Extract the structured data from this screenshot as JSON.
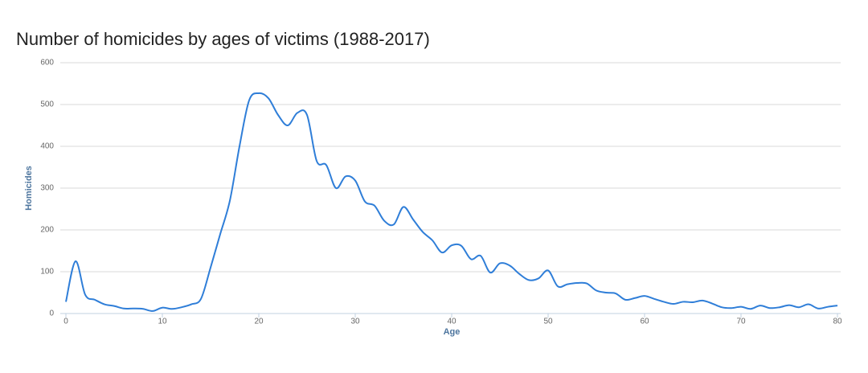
{
  "chart_data": {
    "type": "line",
    "title": "Number of homicides by ages of victims (1988-2017)",
    "x_label": "Age",
    "y_label": "Homicides",
    "x": [
      0,
      1,
      2,
      3,
      4,
      5,
      6,
      7,
      8,
      9,
      10,
      11,
      12,
      13,
      14,
      15,
      16,
      17,
      18,
      19,
      20,
      21,
      22,
      23,
      24,
      25,
      26,
      27,
      28,
      29,
      30,
      31,
      32,
      33,
      34,
      35,
      36,
      37,
      38,
      39,
      40,
      41,
      42,
      43,
      44,
      45,
      46,
      47,
      48,
      49,
      50,
      51,
      52,
      53,
      54,
      55,
      56,
      57,
      58,
      59,
      60,
      61,
      62,
      63,
      64,
      65,
      66,
      67,
      68,
      69,
      70,
      71,
      72,
      73,
      74,
      75,
      76,
      77,
      78,
      79,
      80
    ],
    "series": [
      {
        "name": "Homicides",
        "color": "#2f7ed8",
        "values": [
          28,
          125,
          45,
          33,
          22,
          18,
          12,
          12,
          11,
          6,
          14,
          11,
          15,
          22,
          35,
          110,
          190,
          270,
          400,
          510,
          527,
          515,
          475,
          450,
          480,
          475,
          365,
          355,
          300,
          328,
          318,
          268,
          258,
          222,
          213,
          255,
          225,
          195,
          175,
          146,
          163,
          162,
          130,
          138,
          98,
          120,
          115,
          95,
          80,
          84,
          103,
          65,
          70,
          73,
          72,
          55,
          50,
          48,
          33,
          37,
          42,
          35,
          28,
          23,
          28,
          27,
          31,
          24,
          15,
          13,
          16,
          11,
          19,
          13,
          15,
          20,
          15,
          22,
          12,
          16,
          19
        ]
      }
    ],
    "xlim": [
      0,
      80
    ],
    "xticks": [
      0,
      10,
      20,
      30,
      40,
      50,
      60,
      70,
      80
    ],
    "ylim": [
      0,
      600
    ],
    "yticks": [
      0,
      100,
      200,
      300,
      400,
      500,
      600
    ],
    "grid": true
  }
}
